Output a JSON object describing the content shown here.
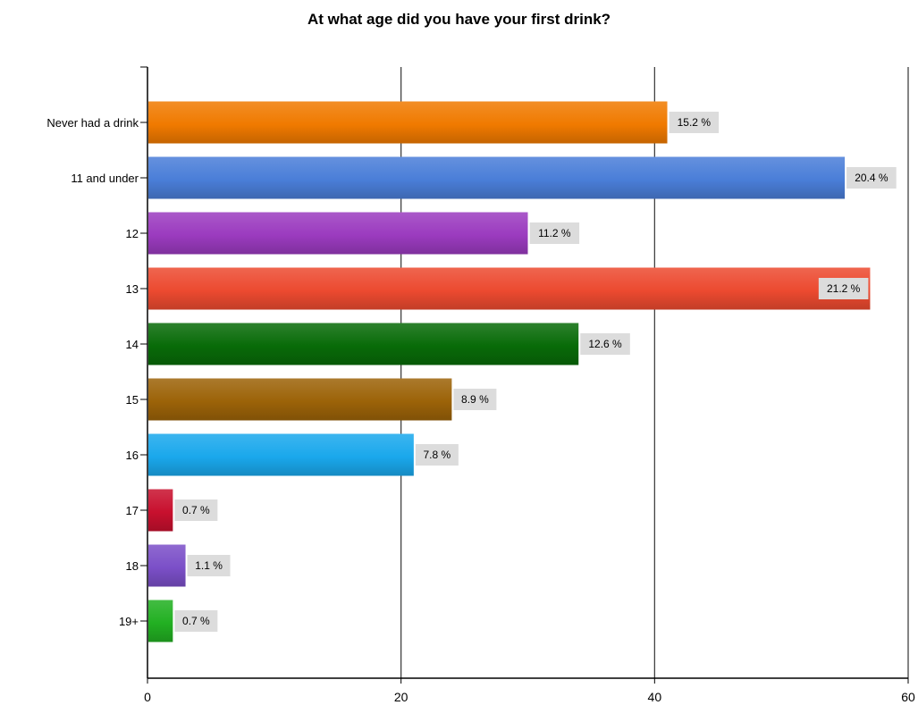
{
  "chart_data": {
    "type": "bar",
    "orientation": "horizontal",
    "title": "At what age did you have your first drink?",
    "xlabel": "",
    "ylabel": "",
    "xlim": [
      0,
      60
    ],
    "x_ticks": [
      "0",
      "20",
      "40",
      "60"
    ],
    "grid": true,
    "legend": "none",
    "categories": [
      "Never had a drink",
      "11 and under",
      "12",
      "13",
      "14",
      "15",
      "16",
      "17",
      "18",
      "19+"
    ],
    "values": [
      41,
      55,
      30,
      57,
      34,
      24,
      21,
      2,
      3,
      2
    ],
    "labels": [
      "15.2 %",
      "20.4 %",
      "11.2 %",
      "21.2 %",
      "12.6 %",
      "8.9 %",
      "7.8 %",
      "0.7 %",
      "1.1 %",
      "0.7 %"
    ],
    "colors": [
      "#f07a00",
      "#4a7ed8",
      "#9b3bbf",
      "#ec4a30",
      "#086b08",
      "#9c6308",
      "#1aa8ec",
      "#c8102e",
      "#7b4fc8",
      "#22b022"
    ]
  }
}
